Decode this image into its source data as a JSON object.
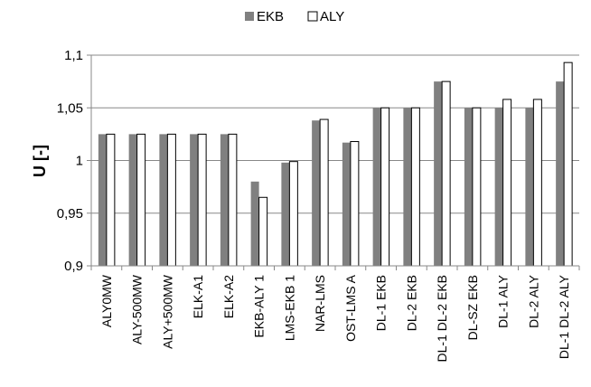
{
  "chart_data": {
    "type": "bar",
    "title": "",
    "xlabel": "",
    "ylabel": "U [-]",
    "ylim": [
      0.9,
      1.1
    ],
    "yticks": [
      0.9,
      0.95,
      1,
      1.05,
      1.1
    ],
    "ytick_labels": [
      "0,9",
      "0,95",
      "1",
      "1,05",
      "1,1"
    ],
    "grid": "horizontal",
    "legend_position": "top-center",
    "categories": [
      "ALY0MW",
      "ALY-500MW",
      "ALY+500MW",
      "ELK-A1",
      "ELK-A2",
      "EKB-ALY 1",
      "LMS-EKB 1",
      "NAR-LMS",
      "OST-LMS A",
      "DL-1 EKB",
      "DL-2 EKB",
      "DL-1 DL-2 EKB",
      "DL-SZ EKB",
      "DL-1 ALY",
      "DL-2 ALY",
      "DL-1 DL-2 ALY"
    ],
    "series": [
      {
        "name": "EKB",
        "color": "#808080",
        "values": [
          1.025,
          1.025,
          1.025,
          1.025,
          1.025,
          0.98,
          0.998,
          1.038,
          1.017,
          1.05,
          1.05,
          1.075,
          1.05,
          1.05,
          1.05,
          1.075
        ]
      },
      {
        "name": "ALY",
        "color": "#ffffff",
        "values": [
          1.025,
          1.025,
          1.025,
          1.025,
          1.025,
          0.965,
          0.999,
          1.039,
          1.018,
          1.05,
          1.05,
          1.075,
          1.05,
          1.058,
          1.058,
          1.093
        ]
      }
    ]
  }
}
